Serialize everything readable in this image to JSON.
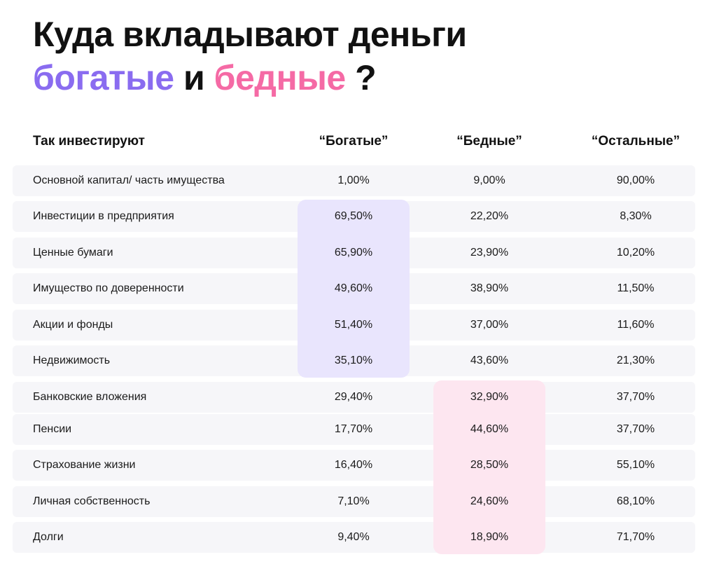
{
  "title": {
    "line1": "Куда вкладывают деньги",
    "rich_word": "богатые",
    "conjunction": " и ",
    "poor_word": "бедные",
    "question": " ?"
  },
  "colors": {
    "rich": "#8a6cf0",
    "poor": "#f56aa5",
    "rich_highlight": "#e9e5fd",
    "poor_highlight": "#fde6f0",
    "row_bg": "#f6f6f9"
  },
  "chart_data": {
    "type": "table",
    "columns": [
      "Так инвестируют",
      "“Богатые”",
      "“Бедные”",
      "“Остальные”"
    ],
    "rows": [
      {
        "label": "Основной капитал/ часть имущества",
        "values": [
          "1,00%",
          "9,00%",
          "90,00%"
        ]
      },
      {
        "label": "Инвестиции в предприятия",
        "values": [
          "69,50%",
          "22,20%",
          "8,30%"
        ]
      },
      {
        "label": "Ценные бумаги",
        "values": [
          "65,90%",
          "23,90%",
          "10,20%"
        ]
      },
      {
        "label": "Имущество по доверенности",
        "values": [
          "49,60%",
          "38,90%",
          "11,50%"
        ]
      },
      {
        "label": "Акции и фонды",
        "values": [
          "51,40%",
          "37,00%",
          "11,60%"
        ]
      },
      {
        "label": "Недвижимость",
        "values": [
          "35,10%",
          "43,60%",
          "21,30%"
        ]
      },
      {
        "label": "Банковские вложения",
        "values": [
          "29,40%",
          "32,90%",
          "37,70%"
        ]
      },
      {
        "label": "Пенсии",
        "values": [
          "17,70%",
          "44,60%",
          "37,70%"
        ]
      },
      {
        "label": "Страхование жизни",
        "values": [
          "16,40%",
          "28,50%",
          "55,10%"
        ]
      },
      {
        "label": "Личная собственность",
        "values": [
          "7,10%",
          "24,60%",
          "68,10%"
        ]
      },
      {
        "label": "Долги",
        "values": [
          "9,40%",
          "18,90%",
          "71,70%"
        ]
      }
    ],
    "highlights": [
      {
        "column": 1,
        "row_start": 1,
        "row_end": 5,
        "color": "#e9e5fd"
      },
      {
        "column": 2,
        "row_start": 6,
        "row_end": 10,
        "color": "#fde6f0"
      }
    ]
  }
}
